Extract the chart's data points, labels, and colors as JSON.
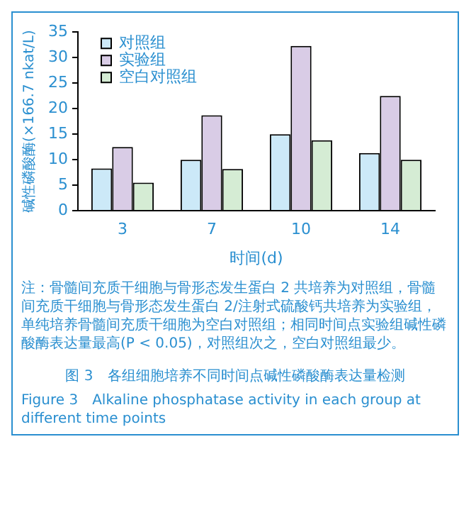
{
  "chart_data": {
    "type": "bar",
    "title": "图 3　各组细胞培养不同时间点碱性磷酸酶表达量检测",
    "subtitle": "Figure 3　Alkaline phosphatase activity in each group at different time points",
    "xlabel": "时间(d)",
    "ylabel": "碱性磷酸酶(×166.7 nkat/L)",
    "categories": [
      "3",
      "7",
      "10",
      "14"
    ],
    "series": [
      {
        "name": "对照组",
        "color": "#cce9f8",
        "values": [
          8.3,
          10,
          15,
          11.3
        ]
      },
      {
        "name": "实验组",
        "color": "#d9cce6",
        "values": [
          12.5,
          18.7,
          32.3,
          22.5
        ]
      },
      {
        "name": "空白对照组",
        "color": "#d5ecd4",
        "values": [
          5.5,
          8.2,
          13.8,
          10
        ]
      }
    ],
    "ylim": [
      0,
      35
    ],
    "yticks": [
      0,
      5,
      10,
      15,
      20,
      25,
      30,
      35
    ],
    "grid": false,
    "legend": "top left",
    "annotations": [
      "注：骨髓间充质干细胞与骨形态发生蛋白 2 共培养为对照组，骨髓间充质干细胞与骨形态发生蛋白 2/注射式硫酸钙共培养为实验组，单纯培养骨髓间充质干细胞为空白对照组；相同时间点实验组碱性磷酸酶表达量最高(P < 0.05)，对照组次之，空白对照组最少。"
    ]
  }
}
